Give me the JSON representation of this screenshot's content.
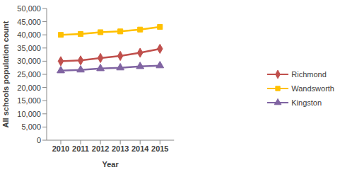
{
  "chart_data": {
    "type": "line",
    "x_label": "Year",
    "y_label": "All schools population count",
    "categories": [
      "2010",
      "2011",
      "2012",
      "2013",
      "2014",
      "2015"
    ],
    "series": [
      {
        "name": "Richmond",
        "color": "#c0504d",
        "marker": "diamond",
        "values": [
          30000,
          30300,
          31200,
          32000,
          33200,
          34700
        ]
      },
      {
        "name": "Wandsworth",
        "color": "#ffc000",
        "marker": "square",
        "values": [
          40000,
          40300,
          41000,
          41300,
          42000,
          43000
        ]
      },
      {
        "name": "Kingston",
        "color": "#8064a2",
        "marker": "triangle",
        "values": [
          26400,
          26700,
          27200,
          27500,
          28000,
          28300
        ]
      }
    ],
    "ylim": [
      0,
      50000
    ],
    "yticks": [
      0,
      {
        "value": 5000,
        "label": "5,000"
      },
      {
        "value": 10000,
        "label": "10,000"
      },
      {
        "value": 15000,
        "label": "15,000"
      },
      {
        "value": 20000,
        "label": "20,000"
      },
      {
        "value": 25000,
        "label": "25,000"
      },
      {
        "value": 30000,
        "label": "30,000"
      },
      {
        "value": 35000,
        "label": "35,000"
      },
      {
        "value": 40000,
        "label": "40,000"
      },
      {
        "value": 45000,
        "label": "45,000"
      },
      {
        "value": 50000,
        "label": "50,000"
      }
    ],
    "grid": false,
    "legend": "right"
  }
}
